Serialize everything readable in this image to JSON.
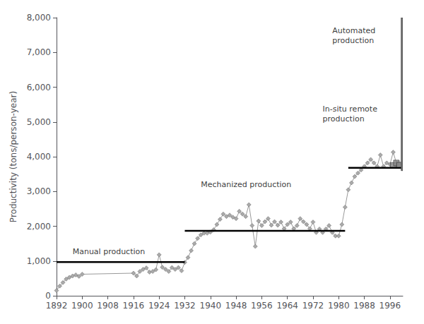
{
  "chart_data": {
    "type": "line",
    "ylabel": "Productivity (tons/person-year)",
    "xlim": [
      1892,
      2000
    ],
    "xticks": [
      1892,
      1900,
      1908,
      1916,
      1924,
      1932,
      1940,
      1948,
      1956,
      1964,
      1972,
      1980,
      1988,
      1996
    ],
    "ylim": [
      0,
      8000
    ],
    "yticks": [
      0,
      {
        "value": 1000,
        "label": "1,000"
      },
      {
        "value": 2000,
        "label": "2,000"
      },
      {
        "value": 3000,
        "label": "3,000"
      },
      {
        "value": 4000,
        "label": "4,000"
      },
      {
        "value": 5000,
        "label": "5,000"
      },
      {
        "value": 6000,
        "label": "6,000"
      },
      {
        "value": 7000,
        "label": "7,000"
      },
      {
        "value": 8000,
        "label": "8,000"
      }
    ],
    "grid": false,
    "series": [
      {
        "type": "line",
        "color": "#999999",
        "marker": "diamond",
        "line_style": "solid",
        "x": [
          1892,
          1893,
          1894,
          1895,
          1896,
          1897,
          1898,
          1899,
          1900,
          1916,
          1917,
          1918,
          1919,
          1920,
          1921,
          1922,
          1923,
          1924,
          1925,
          1926,
          1927,
          1928,
          1929,
          1930,
          1931,
          1932,
          1933,
          1934,
          1935,
          1936,
          1937,
          1938,
          1939,
          1940,
          1941,
          1942,
          1943,
          1944,
          1945,
          1946,
          1947,
          1948,
          1949,
          1950,
          1951,
          1952,
          1953,
          1954,
          1955,
          1956,
          1957,
          1958,
          1959,
          1960,
          1961,
          1962,
          1963,
          1964,
          1965,
          1966,
          1967,
          1968,
          1969,
          1970,
          1971,
          1972,
          1973,
          1974,
          1975,
          1976,
          1977,
          1978,
          1979,
          1980,
          1981,
          1982,
          1983,
          1984,
          1985,
          1986,
          1987,
          1988,
          1989,
          1990,
          1991,
          1992,
          1993,
          1994,
          1995,
          1996,
          1997,
          1998,
          1999
        ],
        "values": [
          150,
          280,
          380,
          480,
          530,
          570,
          600,
          560,
          620,
          650,
          570,
          700,
          760,
          800,
          680,
          700,
          750,
          1180,
          820,
          760,
          700,
          810,
          760,
          810,
          720,
          960,
          1100,
          1300,
          1500,
          1650,
          1750,
          1800,
          1800,
          1830,
          1900,
          2050,
          2200,
          2350,
          2280,
          2320,
          2260,
          2220,
          2430,
          2350,
          2280,
          2620,
          2020,
          1420,
          2150,
          2020,
          2130,
          2220,
          2030,
          2130,
          2030,
          2120,
          1930,
          2050,
          2120,
          1930,
          2020,
          2220,
          2130,
          2050,
          1930,
          2120,
          1820,
          1920,
          1820,
          1920,
          2020,
          1820,
          1720,
          1720,
          2050,
          2550,
          3050,
          3250,
          3430,
          3530,
          3620,
          3720,
          3820,
          3920,
          3820,
          3720,
          4050,
          3720,
          3820,
          3780,
          4130,
          3820,
          3780
        ]
      },
      {
        "type": "scatter",
        "color": "#888888",
        "marker": "square",
        "x": [
          1997,
          1998,
          1999
        ],
        "values": [
          3750,
          3820,
          3760
        ]
      },
      {
        "type": "line",
        "color": "#000000",
        "marker": "none",
        "line_style": "solid",
        "x": [
          1892,
          1932
        ],
        "values": [
          970,
          970
        ]
      },
      {
        "type": "line",
        "color": "#000000",
        "marker": "none",
        "line_style": "solid",
        "x": [
          1932,
          1982
        ],
        "values": [
          1870,
          1870
        ]
      },
      {
        "type": "line",
        "color": "#000000",
        "marker": "none",
        "line_style": "solid",
        "x": [
          1983,
          2000
        ],
        "values": [
          3680,
          3680
        ]
      }
    ],
    "bars": [
      {
        "x_start": 1999.5,
        "x_end": 2003,
        "y_start": 3600,
        "y_end": 8000,
        "color": "#777777"
      }
    ],
    "annotations": [
      {
        "text": "Manual production",
        "x": 1897,
        "y": 1130
      },
      {
        "text": "Mechanized production",
        "x": 1937,
        "y": 3050
      },
      {
        "text": "In-situ remote\nproduction",
        "x": 1975,
        "y": 4950
      },
      {
        "text": "Automated\nproduction",
        "x": 1978,
        "y": 7200
      }
    ]
  }
}
